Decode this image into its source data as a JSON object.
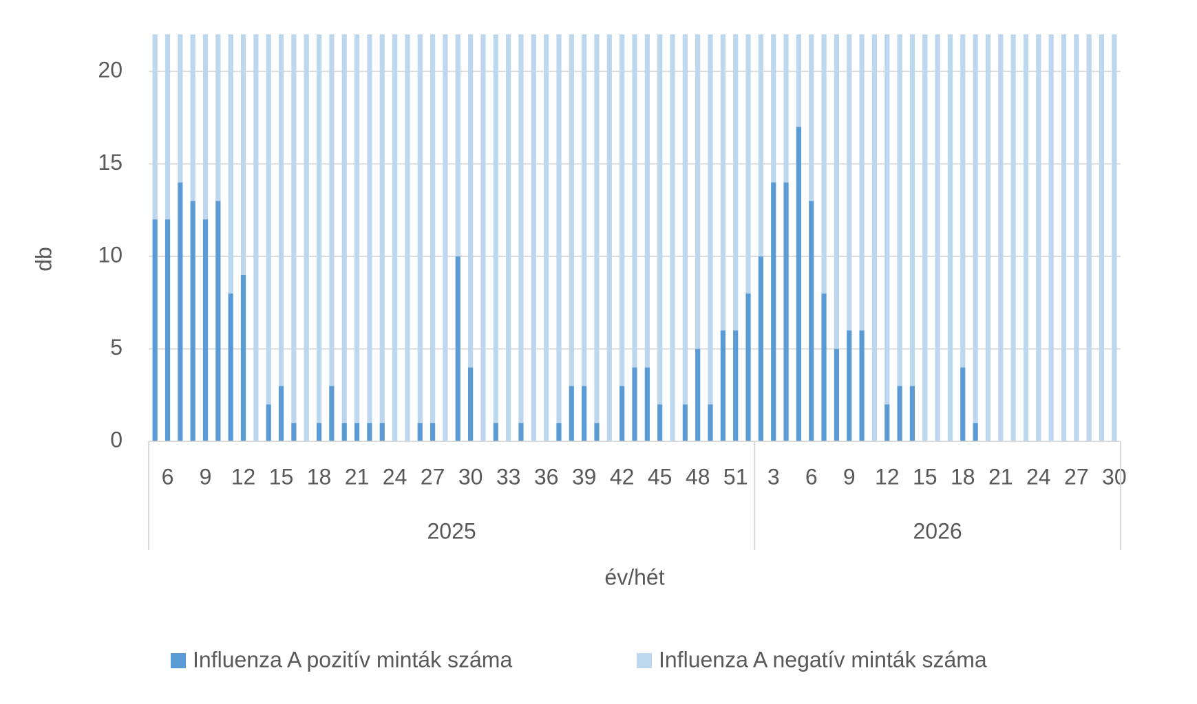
{
  "chart_data": {
    "type": "stacked_bar",
    "y_label": "db",
    "x_label": "év/hét",
    "categories": [
      null,
      "6",
      null,
      null,
      "9",
      null,
      null,
      "12",
      null,
      null,
      "15",
      null,
      null,
      "18",
      null,
      null,
      "21",
      null,
      null,
      "24",
      null,
      null,
      "27",
      null,
      null,
      "30",
      null,
      null,
      "33",
      null,
      null,
      "36",
      null,
      null,
      "39",
      null,
      null,
      "42",
      null,
      null,
      "45",
      null,
      null,
      "48",
      null,
      null,
      "51",
      null,
      null,
      "3",
      null,
      null,
      "6",
      null,
      null,
      "9",
      null,
      null,
      "12",
      null,
      null,
      "15",
      null,
      null,
      "18",
      null,
      null,
      "21",
      null,
      null,
      "24",
      null,
      null,
      "27",
      null,
      null,
      "30"
    ],
    "groups": [
      {
        "label": "2025",
        "weeks": 48
      },
      {
        "label": "2026",
        "weeks": 29
      }
    ],
    "series": [
      {
        "name": "Influenza A pozitív minták száma",
        "color": "#5b9bd5",
        "values": [
          12,
          12,
          14,
          13,
          12,
          13,
          8,
          9,
          0,
          2,
          3,
          1,
          0,
          1,
          3,
          1,
          1,
          1,
          1,
          0,
          0,
          1,
          1,
          0,
          10,
          4,
          0,
          1,
          0,
          1,
          0,
          0,
          1,
          3,
          3,
          1,
          0,
          3,
          4,
          4,
          2,
          0,
          2,
          5,
          2,
          6,
          6,
          8,
          10,
          14,
          14,
          17,
          13,
          8,
          5,
          6,
          6,
          0,
          2,
          3,
          3,
          0,
          0,
          0,
          4,
          1,
          0,
          0,
          0,
          0,
          0,
          0,
          0,
          0,
          0,
          0,
          0
        ]
      },
      {
        "name": "Influenza A negatív minták száma",
        "color": "#bdd7ee",
        "values": [
          10,
          10,
          8,
          9,
          10,
          9,
          14,
          13,
          22,
          20,
          19,
          21,
          22,
          21,
          19,
          21,
          21,
          21,
          21,
          22,
          22,
          21,
          21,
          22,
          12,
          18,
          22,
          21,
          22,
          21,
          22,
          22,
          21,
          19,
          19,
          21,
          22,
          19,
          18,
          18,
          20,
          22,
          20,
          17,
          20,
          16,
          16,
          14,
          12,
          8,
          8,
          5,
          9,
          14,
          17,
          16,
          16,
          22,
          20,
          19,
          19,
          22,
          22,
          22,
          18,
          21,
          22,
          22,
          22,
          22,
          22,
          22,
          22,
          22,
          22,
          22,
          22
        ]
      }
    ],
    "ylim": [
      0,
      22
    ],
    "yticks": [
      0,
      5,
      10,
      15,
      20
    ],
    "grid": true
  }
}
